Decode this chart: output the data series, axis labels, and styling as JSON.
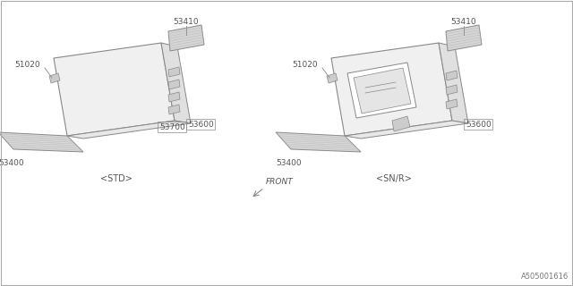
{
  "bg_color": "#ffffff",
  "line_color": "#888888",
  "text_color": "#555555",
  "title_bottom": "A505001616",
  "label_std": "<STD>",
  "label_snr": "<SN/R>",
  "label_front": "FRONT",
  "font_size_label": 7,
  "font_size_part": 6.5,
  "font_size_bottom": 6
}
